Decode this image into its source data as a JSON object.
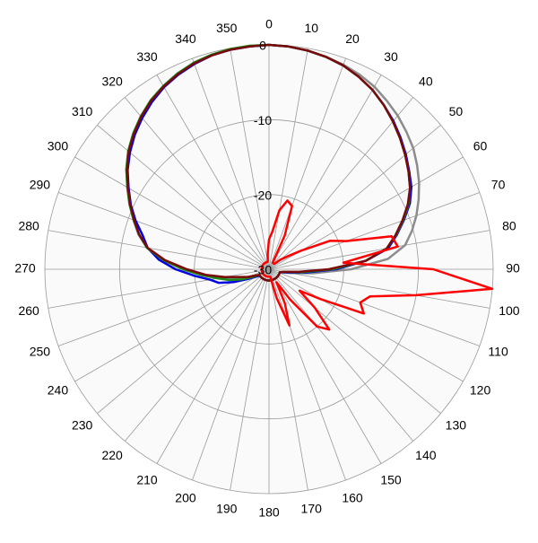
{
  "chart_data": {
    "type": "polar",
    "theta": [
      0,
      5,
      10,
      15,
      20,
      25,
      30,
      35,
      40,
      45,
      50,
      55,
      60,
      65,
      70,
      75,
      80,
      85,
      90,
      95,
      100,
      105,
      110,
      115,
      120,
      125,
      130,
      135,
      140,
      145,
      150,
      155,
      160,
      165,
      170,
      175,
      180,
      185,
      190,
      195,
      200,
      205,
      210,
      215,
      220,
      225,
      230,
      235,
      240,
      245,
      250,
      255,
      260,
      265,
      270,
      275,
      280,
      285,
      290,
      295,
      300,
      305,
      310,
      315,
      320,
      325,
      330,
      335,
      340,
      345,
      350,
      355
    ],
    "thetaticks": [
      0,
      10,
      20,
      30,
      40,
      50,
      60,
      70,
      80,
      90,
      100,
      110,
      120,
      130,
      140,
      150,
      160,
      170,
      180,
      190,
      200,
      210,
      220,
      230,
      240,
      250,
      260,
      270,
      280,
      290,
      300,
      310,
      320,
      330,
      340,
      350
    ],
    "rlim": [
      -30,
      0
    ],
    "rticks": [
      0,
      -10,
      -20,
      -30
    ],
    "grid": true,
    "series": [
      {
        "color": "#8c8c8c",
        "values": [
          0,
          -0.1,
          -0.3,
          -0.6,
          -0.9,
          -1.3,
          -1.8,
          -2.5,
          -3.2,
          -4,
          -4.8,
          -5.8,
          -6.8,
          -7.9,
          -9,
          -10.2,
          -11.5,
          -14,
          -19,
          -24,
          -27,
          -28.5,
          -28.5,
          -28.5,
          -28.5,
          -28.5,
          -28.5,
          -28.5,
          -28.5,
          -28.5,
          -28.5,
          -28.5,
          -28.5,
          -28.5,
          -28.5,
          -28.5,
          -28.5,
          -28.5,
          -28.5,
          -28.5,
          -28.5,
          -28.5,
          -28.5,
          -28.5,
          -28.5,
          -28.5,
          -28.5,
          -28.5,
          -28.5,
          -28,
          -27,
          -25.5,
          -23.5,
          -21,
          -18.5,
          -15.8,
          -13.4,
          -11.9,
          -10.7,
          -9.4,
          -8.1,
          -6.7,
          -5.4,
          -4.3,
          -3.3,
          -2.4,
          -1.7,
          -1.1,
          -0.7,
          -0.4,
          -0.2,
          -0.1
        ]
      },
      {
        "color": "#0000e0",
        "values": [
          0,
          -0.1,
          -0.3,
          -0.6,
          -1,
          -1.6,
          -2.3,
          -3.2,
          -4.1,
          -5.1,
          -6.1,
          -7.1,
          -8,
          -9.2,
          -10.8,
          -12.3,
          -13.8,
          -17,
          -21,
          -25,
          -27.5,
          -28.5,
          -28.5,
          -28.5,
          -28.5,
          -28.5,
          -28.5,
          -28.5,
          -28.5,
          -28.5,
          -28.5,
          -28.5,
          -28.5,
          -28.5,
          -28.5,
          -28.5,
          -28.5,
          -28.5,
          -28.5,
          -28.5,
          -28.5,
          -28.5,
          -28.5,
          -28.5,
          -28.5,
          -28.5,
          -28.5,
          -28.5,
          -28,
          -27,
          -25,
          -23,
          -22,
          -20,
          -17.5,
          -15.2,
          -13.5,
          -12.5,
          -11,
          -9.6,
          -8.3,
          -6.9,
          -5.7,
          -4.6,
          -3.6,
          -2.7,
          -1.9,
          -1.3,
          -0.8,
          -0.4,
          -0.2,
          -0.1
        ]
      },
      {
        "color": "#1a8a1a",
        "values": [
          0,
          -0.1,
          -0.3,
          -0.6,
          -1,
          -1.6,
          -2.3,
          -3.2,
          -4.2,
          -5.2,
          -6.2,
          -7.2,
          -8.2,
          -9.4,
          -10.9,
          -12.4,
          -14,
          -17,
          -21.5,
          -25.5,
          -28,
          -28.5,
          -28.5,
          -28.5,
          -28.5,
          -28.5,
          -28.5,
          -28.5,
          -28.5,
          -28.5,
          -28.5,
          -28.5,
          -28.5,
          -28.5,
          -28.5,
          -28.5,
          -28.5,
          -28.5,
          -28.5,
          -28.5,
          -28.5,
          -28.5,
          -28.5,
          -28.5,
          -28.5,
          -28.5,
          -28.5,
          -28.5,
          -28.5,
          -27.5,
          -26,
          -24.5,
          -23,
          -21,
          -18.5,
          -15.8,
          -13.4,
          -12,
          -10.7,
          -9.4,
          -8.1,
          -6.7,
          -5.4,
          -4.3,
          -3.3,
          -2.4,
          -1.7,
          -1.1,
          -0.6,
          -0.3,
          -0.1,
          0
        ]
      },
      {
        "color": "#7a0a0a",
        "values": [
          0,
          -0.1,
          -0.3,
          -0.6,
          -1,
          -1.6,
          -2.3,
          -3.2,
          -4.2,
          -5.2,
          -6.2,
          -7.2,
          -8.2,
          -9.5,
          -11,
          -12.5,
          -14,
          -17,
          -22,
          -26,
          -28,
          -28.5,
          -28.5,
          -28.5,
          -28.5,
          -28.5,
          -28.5,
          -28.5,
          -28.5,
          -28.5,
          -28.5,
          -28.5,
          -28.5,
          -28.5,
          -28.5,
          -28.5,
          -28.5,
          -28.5,
          -28.5,
          -28.5,
          -28.5,
          -28.5,
          -28.5,
          -28.5,
          -28.5,
          -28.5,
          -28.5,
          -28.5,
          -28.5,
          -28,
          -27,
          -26,
          -24,
          -21.5,
          -19,
          -16,
          -13.5,
          -12,
          -10.8,
          -9.5,
          -8.2,
          -6.8,
          -5.5,
          -4.4,
          -3.4,
          -2.5,
          -1.8,
          -1.2,
          -0.7,
          -0.4,
          -0.2,
          -0.1
        ]
      },
      {
        "color": "#ff0000",
        "values": [
          -26,
          -25,
          -22,
          -20.5,
          -21,
          -25,
          -29,
          -29,
          -29,
          -29,
          -28,
          -27,
          -25,
          -21,
          -19,
          -13,
          -12.5,
          -20,
          -8,
          0,
          -10,
          -16,
          -17,
          -16,
          -22,
          -25,
          -22,
          -18.6,
          -20,
          -25,
          -28,
          -25,
          -22,
          -26,
          -29,
          -29,
          -29,
          -29,
          -29,
          -29,
          -29,
          -29,
          -29,
          -29,
          -29,
          -29,
          -29,
          -29,
          -29,
          -29,
          -29,
          -29,
          -29,
          -29,
          -29,
          -29,
          -29,
          -29,
          -29,
          -29,
          -29,
          -29,
          -29,
          -29,
          -29,
          -29,
          -29,
          -29,
          -29,
          -29,
          -29,
          -28
        ]
      }
    ]
  }
}
